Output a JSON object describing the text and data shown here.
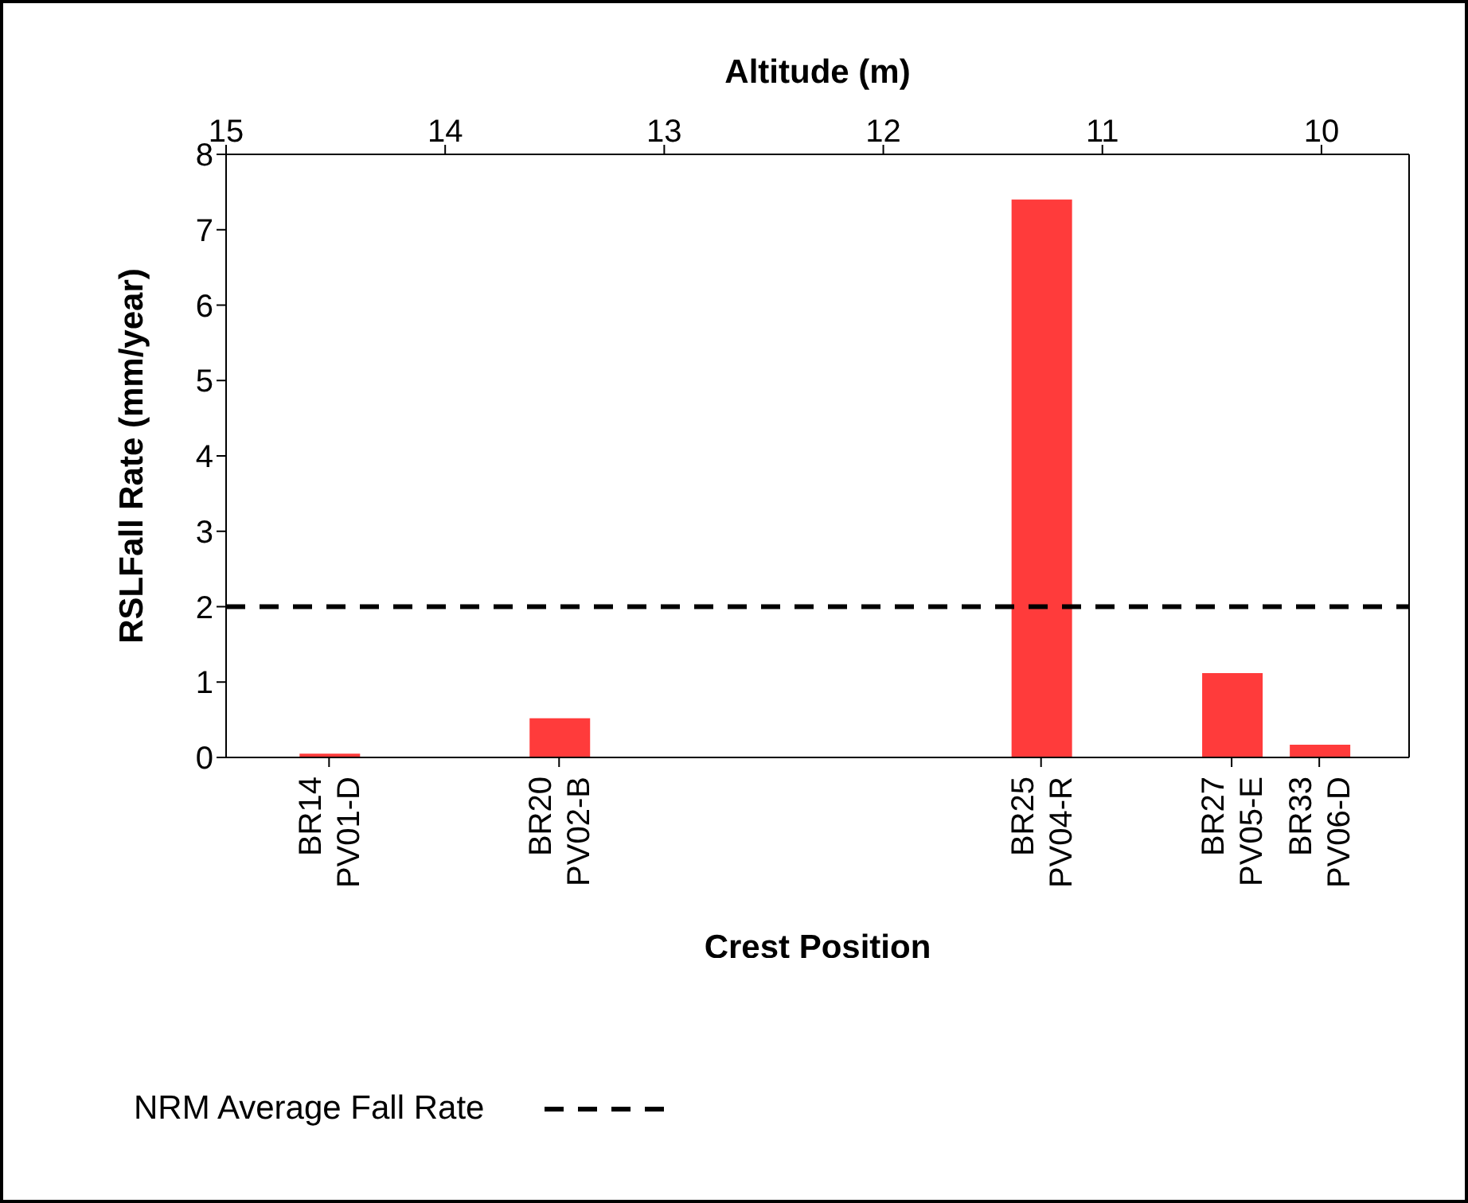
{
  "chart_data": {
    "type": "bar",
    "xlabel": "Altitude (m)",
    "ylabel": "RSLFall Rate (mm/year)",
    "x": [
      14.53,
      13.48,
      11.28,
      10.41,
      10.01
    ],
    "series": [
      {
        "color": "#ff3b3b",
        "values": [
          0.05,
          0.52,
          7.4,
          1.12,
          0.17
        ]
      }
    ],
    "xlim": [
      15,
      9.6
    ],
    "xticks": [
      15,
      14,
      13,
      12,
      11,
      10
    ],
    "ylim": [
      0,
      8
    ],
    "yticks": [
      0,
      1,
      2,
      3,
      4,
      5,
      6,
      7,
      8
    ],
    "annotations": [
      {
        "text": "BR14\nPV01-D",
        "x": 14.53
      },
      {
        "text": "BR20\nPV02-B",
        "x": 13.48
      },
      {
        "text": "BR25\nPV04-R",
        "x": 11.28
      },
      {
        "text": "BR27\nPV05-E",
        "x": 10.41
      },
      {
        "text": "BR33\nPV06-D",
        "x": 10.01
      },
      "Crest Position"
    ],
    "ref_lines": [
      {
        "axis": "y",
        "value": 2,
        "label": "NRM Average Fall Rate",
        "color": "#000000",
        "line_style": "dashed"
      }
    ],
    "legend": "bottom"
  }
}
